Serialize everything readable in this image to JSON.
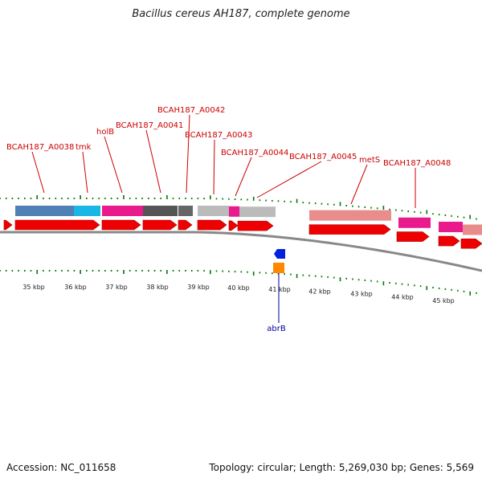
{
  "title": "Bacillus cereus AH187, complete genome",
  "accession_label": "Accession: NC_011658",
  "topology_label": "Topology: circular; Length: 5,269,030 bp; Genes: 5,569",
  "colors": {
    "label_red": "#cc0000",
    "label_blue": "#000099",
    "tick_green": "#007700",
    "arrow_red": "#ee0000",
    "backbone": "#888888"
  },
  "scale_labels": [
    "35 kbp",
    "36 kbp",
    "37 kbp",
    "38 kbp",
    "39 kbp",
    "40 kbp",
    "41 kbp",
    "42 kbp",
    "43 kbp",
    "44 kbp",
    "45 kbp"
  ],
  "gene_labels": [
    "BCAH187_A0038",
    "tmk",
    "holB",
    "BCAH187_A0041",
    "BCAH187_A0042",
    "BCAH187_A0043",
    "BCAH187_A0044",
    "BCAH187_A0045",
    "metS",
    "BCAH187_A0048"
  ],
  "reverse_gene_label": "abrB",
  "cog_blocks": [
    {
      "color": "#4f81b5"
    },
    {
      "color": "#1ab6e6"
    },
    {
      "color": "#e81a8c"
    },
    {
      "color": "#555555"
    },
    {
      "color": "#666666"
    },
    {
      "color": "#bbbbbb"
    },
    {
      "color": "#e81a8c"
    },
    {
      "color": "#bbbbbb"
    },
    {
      "color": "#e88c8c"
    },
    {
      "color": "#e81a8c"
    },
    {
      "color": "#e81a8c"
    },
    {
      "color": "#e88c8c"
    }
  ]
}
